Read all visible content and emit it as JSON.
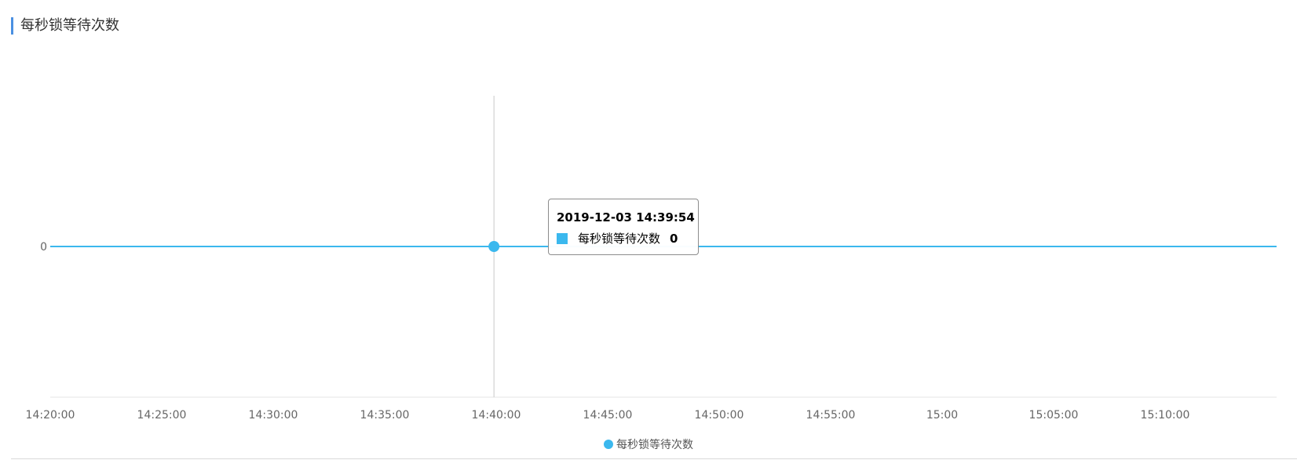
{
  "panel": {
    "title": "每秒锁等待次数"
  },
  "colors": {
    "series": "#3bb8ee",
    "crosshair": "#c8c8c8",
    "axis": "#e6e6e6",
    "title_accent": "#4a90e2"
  },
  "tooltip": {
    "time": "2019-12-03 14:39:54",
    "series_name": "每秒锁等待次数",
    "value": "0"
  },
  "chart_data": {
    "type": "line",
    "title": "",
    "xlabel": "",
    "ylabel": "",
    "x_ticks": [
      "14:20:00",
      "14:25:00",
      "14:30:00",
      "14:35:00",
      "14:40:00",
      "14:45:00",
      "14:50:00",
      "14:55:00",
      "15:00",
      "15:05:00",
      "15:10:00"
    ],
    "y_ticks": [
      "0"
    ],
    "xlim": [
      "14:20:00",
      "15:15:00"
    ],
    "ylim": [
      -1,
      1
    ],
    "legend_position": "bottom-center",
    "grid": false,
    "series": [
      {
        "name": "每秒锁等待次数",
        "x": [
          "14:20:00",
          "14:25:00",
          "14:30:00",
          "14:35:00",
          "14:39:54",
          "14:45:00",
          "14:50:00",
          "14:55:00",
          "15:00:00",
          "15:05:00",
          "15:10:00",
          "15:15:00"
        ],
        "y": [
          0,
          0,
          0,
          0,
          0,
          0,
          0,
          0,
          0,
          0,
          0,
          0
        ]
      }
    ],
    "highlight": {
      "x": "14:39:54",
      "y": 0
    }
  }
}
